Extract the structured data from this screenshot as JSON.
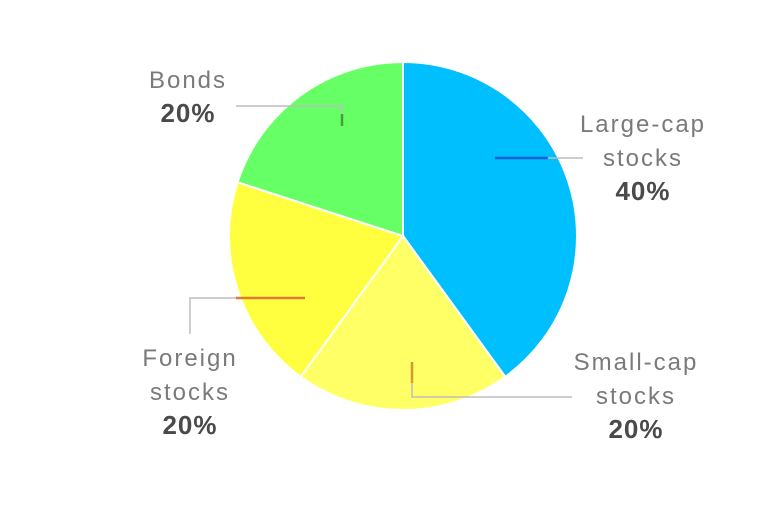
{
  "chart_data": {
    "type": "pie",
    "title": "",
    "start_angle_deg": 0,
    "direction": "clockwise",
    "slices": [
      {
        "label_lines": [
          "Large-cap",
          "stocks"
        ],
        "value": 40,
        "value_label": "40%",
        "color": "#00bfff",
        "accent": "#1560d4"
      },
      {
        "label_lines": [
          "Small-cap",
          "stocks"
        ],
        "value": 20,
        "value_label": "20%",
        "color": "#ffff66",
        "accent": "#d59a2a"
      },
      {
        "label_lines": [
          "Foreign",
          "stocks"
        ],
        "value": 20,
        "value_label": "20%",
        "color": "#ffff40",
        "accent": "#e07a35"
      },
      {
        "label_lines": [
          "Bonds"
        ],
        "value": 20,
        "value_label": "20%",
        "color": "#66ff66",
        "accent": "#4a9a3a"
      }
    ]
  }
}
